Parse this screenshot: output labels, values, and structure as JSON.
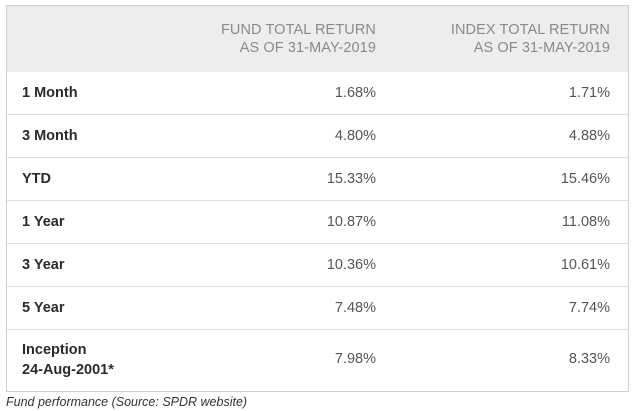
{
  "header": {
    "fund_line1": "FUND TOTAL RETURN",
    "fund_line2": "AS OF 31-MAY-2019",
    "index_line1": "INDEX TOTAL RETURN",
    "index_line2": "AS OF 31-MAY-2019"
  },
  "rows": [
    {
      "label": "1 Month",
      "fund": "1.68%",
      "index": "1.71%"
    },
    {
      "label": "3 Month",
      "fund": "4.80%",
      "index": "4.88%"
    },
    {
      "label": "YTD",
      "fund": "15.33%",
      "index": "15.46%"
    },
    {
      "label": "1 Year",
      "fund": "10.87%",
      "index": "11.08%"
    },
    {
      "label": "3 Year",
      "fund": "10.36%",
      "index": "10.61%"
    },
    {
      "label": "5 Year",
      "fund": "7.48%",
      "index": "7.74%"
    },
    {
      "label_line1": "Inception",
      "label_line2": "24-Aug-2001*",
      "fund": "7.98%",
      "index": "8.33%"
    }
  ],
  "caption": "Fund performance (Source: SPDR website)"
}
